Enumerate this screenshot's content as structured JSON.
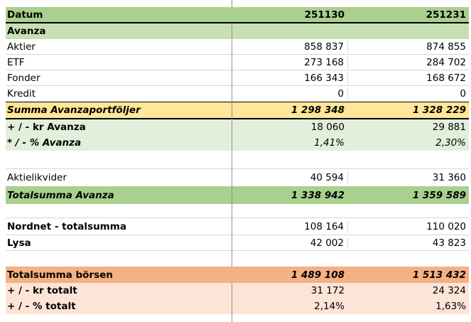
{
  "spreadsheet": {
    "columns": {
      "label_header": "Datum",
      "period_1": "251130",
      "period_2": "251231"
    },
    "rows": [
      {
        "label": "Datum",
        "v1": "251130",
        "v2": "251231"
      },
      {
        "label": "Avanza",
        "v1": "",
        "v2": ""
      },
      {
        "label": "Aktier",
        "v1": "858 837",
        "v2": "874 855"
      },
      {
        "label": "ETF",
        "v1": "273 168",
        "v2": "284 702"
      },
      {
        "label": "Fonder",
        "v1": "166 343",
        "v2": "168 672"
      },
      {
        "label": "Kredit",
        "v1": "0",
        "v2": "0"
      },
      {
        "label": "Summa Avanzaportföljer",
        "v1": "1 298 348",
        "v2": "1 328 229"
      },
      {
        "label": "+ / - kr Avanza",
        "v1": "18 060",
        "v2": "29 881"
      },
      {
        "label": "* / - % Avanza",
        "v1": "1,41%",
        "v2": "2,30%"
      },
      {
        "label": "",
        "v1": "",
        "v2": ""
      },
      {
        "label": "Aktielikvider",
        "v1": "40 594",
        "v2": "31 360"
      },
      {
        "label": "Totalsumma Avanza",
        "v1": "1 338 942",
        "v2": "1 359 589"
      },
      {
        "label": "",
        "v1": "",
        "v2": ""
      },
      {
        "label": "Nordnet - totalsumma",
        "v1": "108 164",
        "v2": "110 020"
      },
      {
        "label": "Lysa",
        "v1": "42 002",
        "v2": "43 823"
      },
      {
        "label": "",
        "v1": "",
        "v2": ""
      },
      {
        "label": "Totalsumma börsen",
        "v1": "1 489 108",
        "v2": "1 513 432"
      },
      {
        "label": "+ / - kr totalt",
        "v1": "31 172",
        "v2": "24 324"
      },
      {
        "label": "+ / - % totalt",
        "v1": "2,14%",
        "v2": "1,63%"
      }
    ],
    "colors": {
      "header_green": "#a9d08e",
      "section_green": "#c6e0b4",
      "pale_green": "#e2efda",
      "summary_yellow": "#ffe699",
      "total_orange": "#f4b183",
      "pale_orange": "#fce4d6"
    }
  }
}
